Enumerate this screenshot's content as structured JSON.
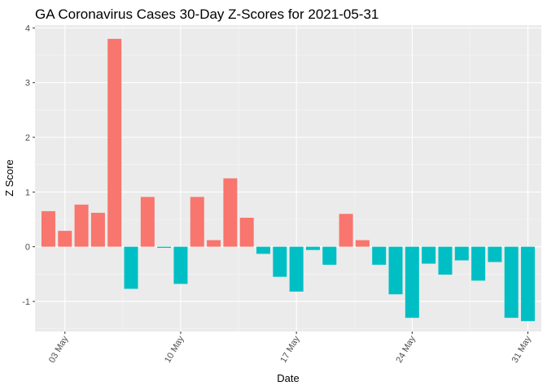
{
  "chart_data": {
    "type": "bar",
    "title": "GA Coronavirus Cases 30-Day Z-Scores for 2021-05-31",
    "xlabel": "Date",
    "ylabel": "Z Score",
    "ylim": [
      -1.55,
      4.05
    ],
    "y_ticks": [
      -1,
      0,
      1,
      2,
      3,
      4
    ],
    "x_ticks": [
      {
        "label": "03 May",
        "day": 3
      },
      {
        "label": "10 May",
        "day": 10
      },
      {
        "label": "17 May",
        "day": 17
      },
      {
        "label": "24 May",
        "day": 24
      },
      {
        "label": "31 May",
        "day": 31
      }
    ],
    "days": [
      2,
      3,
      4,
      5,
      6,
      7,
      8,
      9,
      10,
      11,
      12,
      13,
      14,
      15,
      16,
      17,
      18,
      19,
      20,
      21,
      22,
      23,
      24,
      25,
      26,
      27,
      28,
      29,
      30,
      31
    ],
    "values": [
      0.65,
      0.29,
      0.77,
      0.62,
      3.8,
      -0.77,
      0.91,
      -0.02,
      -0.68,
      0.91,
      0.12,
      1.25,
      0.53,
      -0.13,
      -0.55,
      -0.82,
      -0.06,
      -0.33,
      0.6,
      0.12,
      -0.33,
      -0.87,
      -1.3,
      -0.31,
      -0.51,
      -0.25,
      -0.62,
      -0.28,
      -1.3,
      -1.36
    ],
    "grid": true,
    "legend": "none",
    "colors": {
      "positive": "#F8766D",
      "negative": "#00BFC4",
      "panel": "#EBEBEB",
      "grid_major": "#FFFFFF",
      "grid_minor": "#F5F5F5",
      "tick_text": "#4D4D4D"
    }
  }
}
